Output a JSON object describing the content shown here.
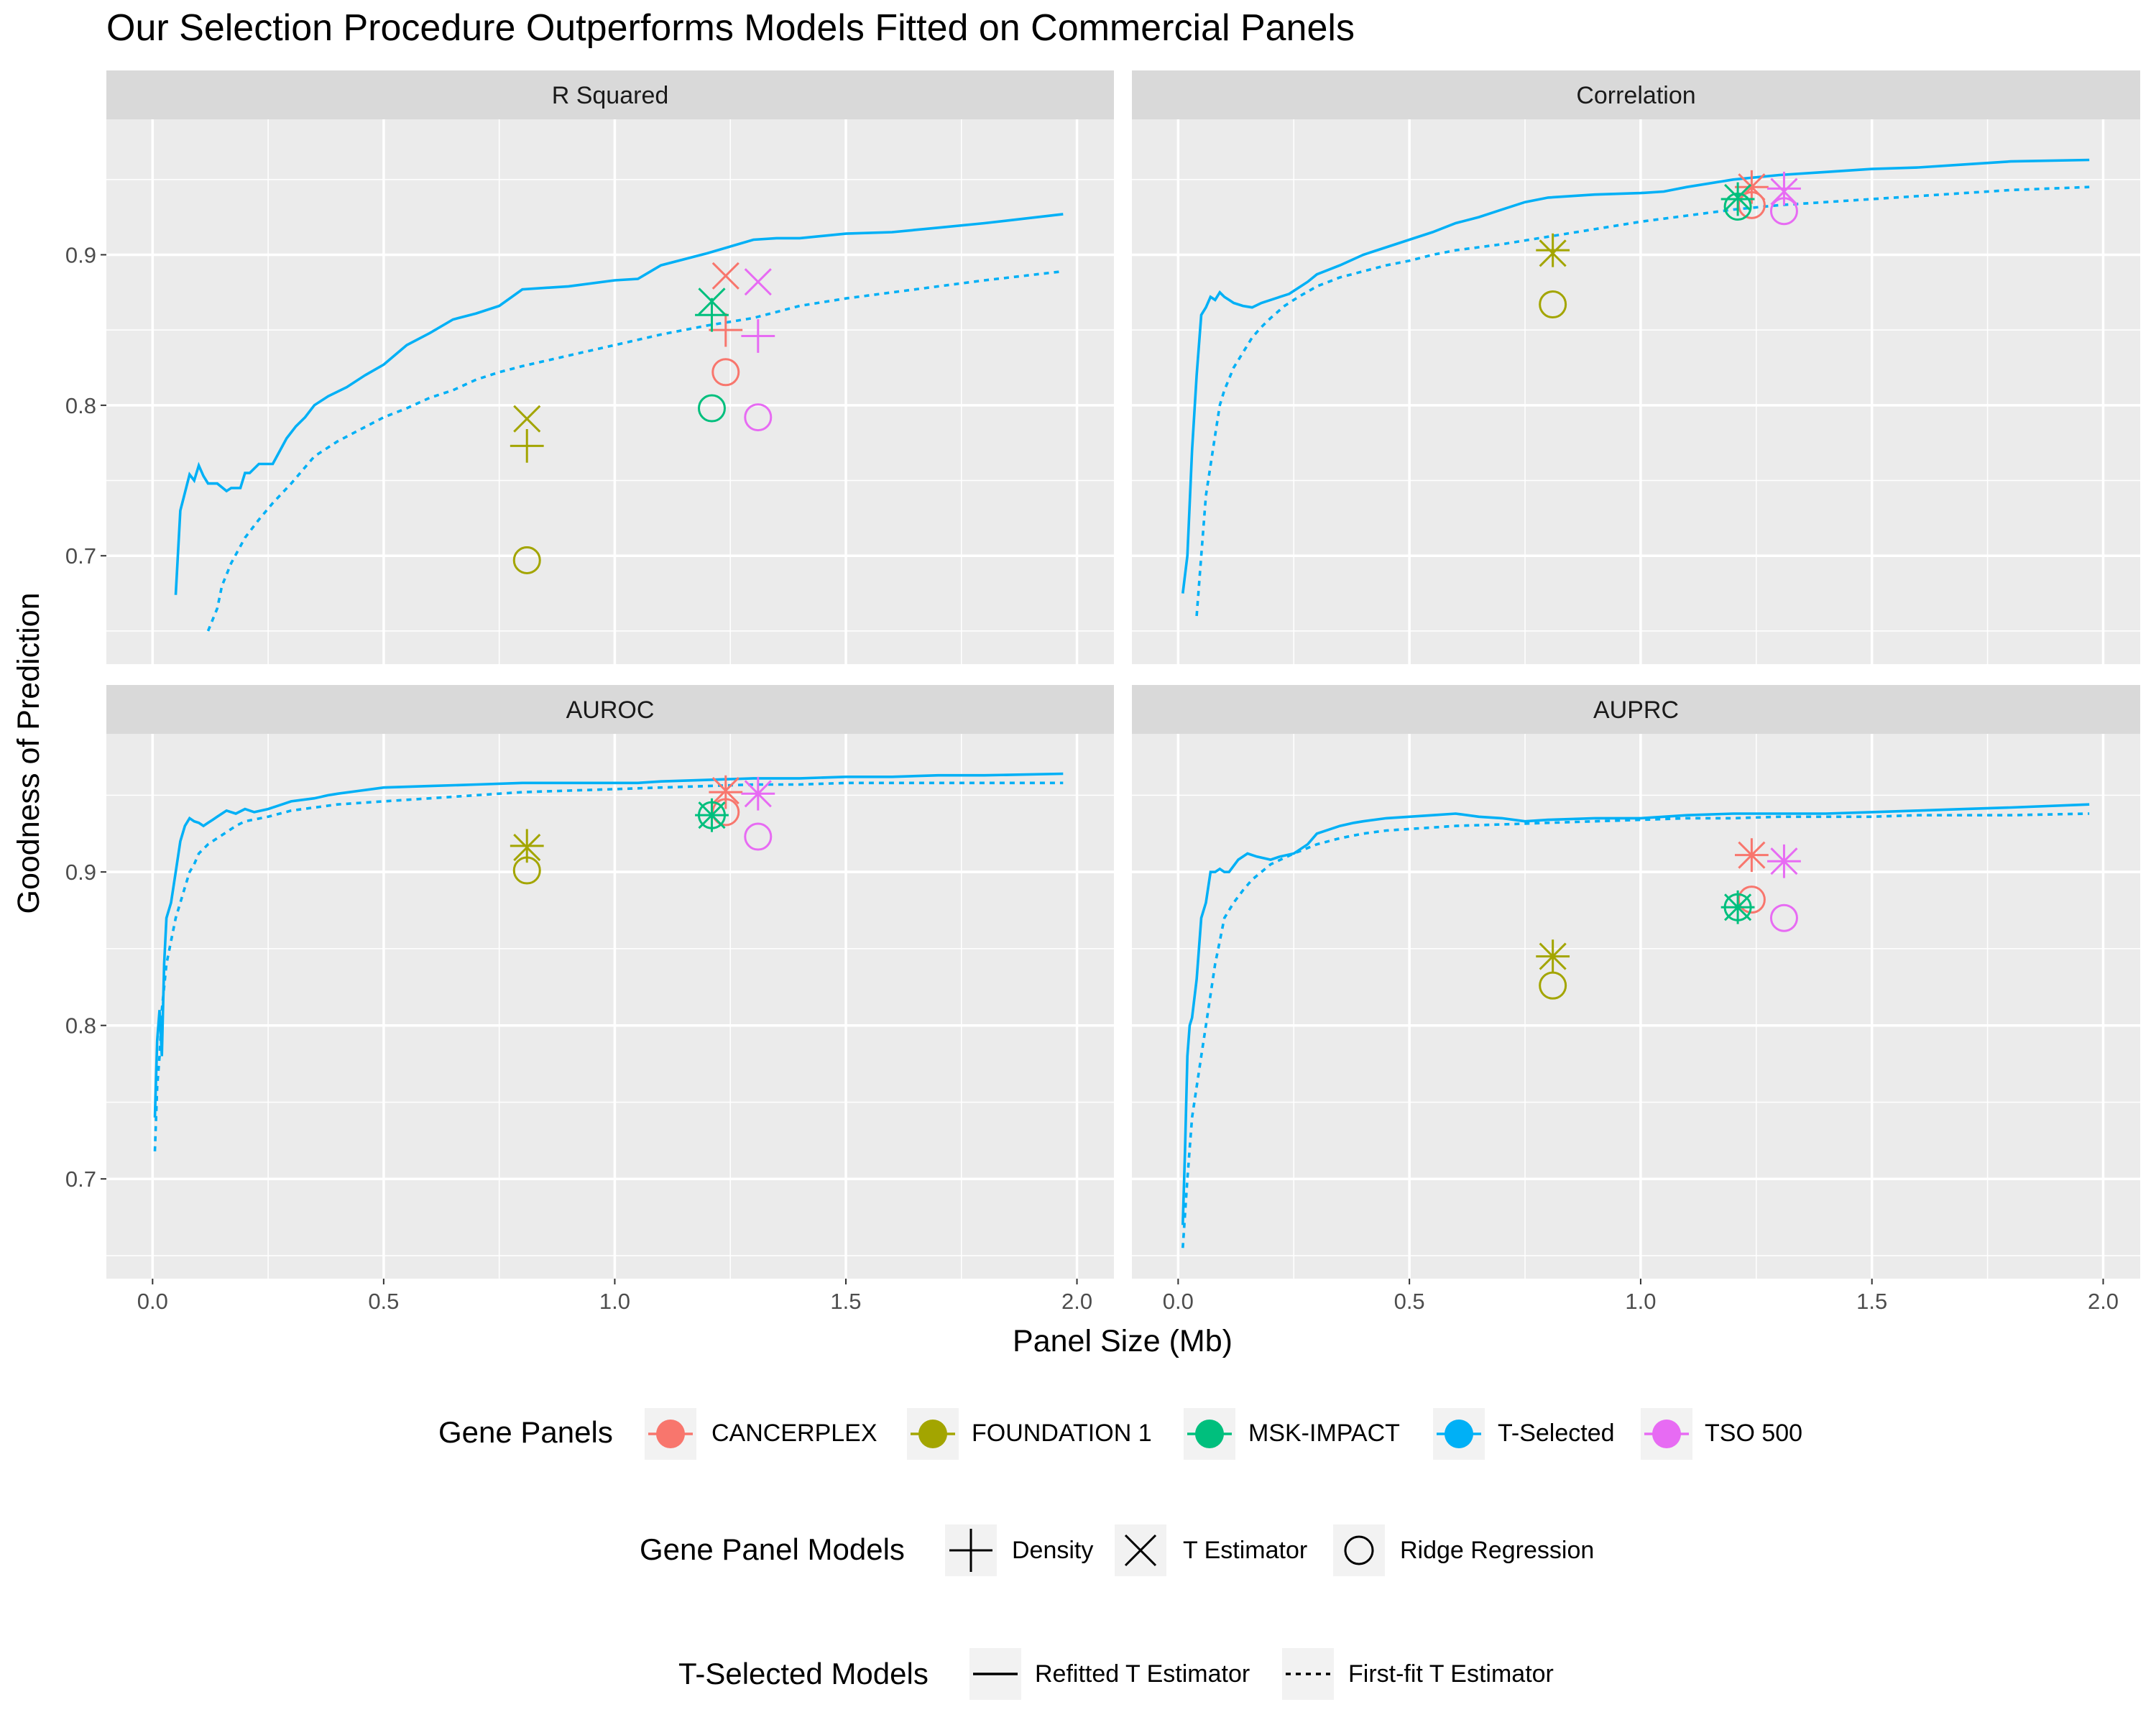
{
  "chart_data": {
    "type": "line",
    "title": "Our Selection Procedure Outperforms Models Fitted on Commercial Panels",
    "xlabel": "Panel Size (Mb)",
    "ylabel": "Goodness of Prediction",
    "facet_layout": "2x2",
    "facets": [
      "R Squared",
      "Correlation",
      "AUROC",
      "AUPRC"
    ],
    "xlim": [
      -0.1,
      2.08
    ],
    "x_ticks": [
      0.0,
      0.5,
      1.0,
      1.5,
      2.0
    ],
    "x_tick_labels": [
      "0.0",
      "0.5",
      "1.0",
      "1.5",
      "2.0"
    ],
    "rows": [
      {
        "ylim": [
          0.628,
          0.99
        ],
        "y_ticks": [
          0.7,
          0.8,
          0.9
        ],
        "y_tick_labels": [
          "0.7",
          "0.8",
          "0.9"
        ]
      },
      {
        "ylim": [
          0.635,
          0.99
        ],
        "y_ticks": [
          0.7,
          0.8,
          0.9
        ],
        "y_tick_labels": [
          "0.7",
          "0.8",
          "0.9"
        ]
      }
    ],
    "colors": {
      "CANCERPLEX": "#F8766D",
      "FOUNDATION 1": "#A3A500",
      "MSK-IMPACT": "#00BF7D",
      "T-Selected": "#00B0F6",
      "TSO 500": "#E76BF3"
    },
    "lines": {
      "R Squared": {
        "refitted": {
          "x": [
            0.05,
            0.06,
            0.08,
            0.09,
            0.1,
            0.11,
            0.12,
            0.14,
            0.16,
            0.17,
            0.19,
            0.2,
            0.21,
            0.23,
            0.26,
            0.29,
            0.31,
            0.33,
            0.35,
            0.38,
            0.42,
            0.46,
            0.5,
            0.55,
            0.6,
            0.65,
            0.7,
            0.75,
            0.8,
            0.9,
            1.0,
            1.05,
            1.1,
            1.2,
            1.3,
            1.35,
            1.4,
            1.5,
            1.6,
            1.7,
            1.8,
            1.97
          ],
          "y": [
            0.674,
            0.73,
            0.754,
            0.75,
            0.76,
            0.753,
            0.748,
            0.748,
            0.743,
            0.745,
            0.745,
            0.755,
            0.755,
            0.761,
            0.761,
            0.778,
            0.786,
            0.792,
            0.8,
            0.806,
            0.812,
            0.82,
            0.827,
            0.84,
            0.848,
            0.857,
            0.861,
            0.866,
            0.877,
            0.879,
            0.883,
            0.884,
            0.893,
            0.901,
            0.91,
            0.911,
            0.911,
            0.914,
            0.915,
            0.918,
            0.921,
            0.927
          ]
        },
        "firstfit": {
          "x": [
            0.12,
            0.14,
            0.15,
            0.17,
            0.2,
            0.23,
            0.26,
            0.3,
            0.35,
            0.4,
            0.45,
            0.5,
            0.55,
            0.6,
            0.65,
            0.7,
            0.75,
            0.8,
            0.9,
            1.0,
            1.1,
            1.2,
            1.3,
            1.4,
            1.5,
            1.6,
            1.7,
            1.8,
            1.97
          ],
          "y": [
            0.65,
            0.665,
            0.68,
            0.695,
            0.712,
            0.724,
            0.735,
            0.748,
            0.766,
            0.776,
            0.784,
            0.792,
            0.798,
            0.805,
            0.81,
            0.817,
            0.822,
            0.826,
            0.833,
            0.84,
            0.847,
            0.853,
            0.858,
            0.866,
            0.871,
            0.875,
            0.879,
            0.883,
            0.889
          ]
        }
      },
      "Correlation": {
        "refitted": {
          "x": [
            0.01,
            0.02,
            0.03,
            0.04,
            0.05,
            0.06,
            0.07,
            0.08,
            0.09,
            0.1,
            0.11,
            0.12,
            0.14,
            0.16,
            0.18,
            0.2,
            0.22,
            0.24,
            0.26,
            0.28,
            0.3,
            0.35,
            0.4,
            0.45,
            0.5,
            0.55,
            0.6,
            0.65,
            0.7,
            0.75,
            0.8,
            0.9,
            1.0,
            1.05,
            1.1,
            1.2,
            1.3,
            1.4,
            1.5,
            1.6,
            1.7,
            1.8,
            1.97
          ],
          "y": [
            0.675,
            0.7,
            0.77,
            0.82,
            0.86,
            0.865,
            0.872,
            0.87,
            0.875,
            0.872,
            0.87,
            0.868,
            0.866,
            0.865,
            0.868,
            0.87,
            0.872,
            0.874,
            0.878,
            0.882,
            0.887,
            0.893,
            0.9,
            0.905,
            0.91,
            0.915,
            0.921,
            0.925,
            0.93,
            0.935,
            0.938,
            0.94,
            0.941,
            0.942,
            0.945,
            0.95,
            0.953,
            0.955,
            0.957,
            0.958,
            0.96,
            0.962,
            0.963
          ]
        },
        "firstfit": {
          "x": [
            0.04,
            0.05,
            0.06,
            0.07,
            0.08,
            0.09,
            0.1,
            0.12,
            0.14,
            0.16,
            0.18,
            0.2,
            0.23,
            0.26,
            0.3,
            0.35,
            0.4,
            0.45,
            0.5,
            0.55,
            0.6,
            0.7,
            0.8,
            0.9,
            1.0,
            1.1,
            1.2,
            1.3,
            1.4,
            1.5,
            1.6,
            1.7,
            1.8,
            1.97
          ],
          "y": [
            0.66,
            0.7,
            0.74,
            0.76,
            0.78,
            0.8,
            0.81,
            0.825,
            0.835,
            0.845,
            0.852,
            0.858,
            0.866,
            0.872,
            0.879,
            0.885,
            0.889,
            0.893,
            0.896,
            0.9,
            0.903,
            0.907,
            0.912,
            0.917,
            0.922,
            0.926,
            0.93,
            0.933,
            0.935,
            0.937,
            0.939,
            0.941,
            0.943,
            0.945
          ]
        }
      },
      "AUROC": {
        "refitted": {
          "x": [
            0.005,
            0.01,
            0.015,
            0.02,
            0.025,
            0.03,
            0.04,
            0.05,
            0.06,
            0.07,
            0.08,
            0.09,
            0.1,
            0.11,
            0.12,
            0.13,
            0.14,
            0.15,
            0.16,
            0.18,
            0.2,
            0.22,
            0.25,
            0.28,
            0.3,
            0.35,
            0.38,
            0.4,
            0.45,
            0.5,
            0.6,
            0.7,
            0.8,
            0.9,
            1.0,
            1.05,
            1.1,
            1.2,
            1.3,
            1.4,
            1.5,
            1.6,
            1.7,
            1.8,
            1.97
          ],
          "y": [
            0.74,
            0.79,
            0.81,
            0.78,
            0.84,
            0.87,
            0.88,
            0.9,
            0.92,
            0.93,
            0.935,
            0.933,
            0.932,
            0.93,
            0.932,
            0.934,
            0.936,
            0.938,
            0.94,
            0.938,
            0.941,
            0.939,
            0.941,
            0.944,
            0.946,
            0.948,
            0.95,
            0.951,
            0.953,
            0.955,
            0.956,
            0.957,
            0.958,
            0.958,
            0.958,
            0.958,
            0.959,
            0.96,
            0.961,
            0.961,
            0.962,
            0.962,
            0.963,
            0.963,
            0.964
          ]
        },
        "firstfit": {
          "x": [
            0.005,
            0.01,
            0.015,
            0.02,
            0.03,
            0.04,
            0.05,
            0.06,
            0.07,
            0.08,
            0.09,
            0.1,
            0.12,
            0.14,
            0.16,
            0.18,
            0.2,
            0.25,
            0.3,
            0.35,
            0.4,
            0.5,
            0.6,
            0.7,
            0.8,
            0.9,
            1.0,
            1.1,
            1.2,
            1.3,
            1.4,
            1.5,
            1.6,
            1.7,
            1.8,
            1.97
          ],
          "y": [
            0.718,
            0.76,
            0.78,
            0.81,
            0.84,
            0.855,
            0.87,
            0.88,
            0.89,
            0.9,
            0.905,
            0.912,
            0.918,
            0.922,
            0.926,
            0.93,
            0.933,
            0.936,
            0.94,
            0.942,
            0.944,
            0.946,
            0.948,
            0.95,
            0.952,
            0.953,
            0.954,
            0.955,
            0.956,
            0.957,
            0.957,
            0.958,
            0.958,
            0.958,
            0.958,
            0.958
          ]
        }
      },
      "AUPRC": {
        "refitted": {
          "x": [
            0.01,
            0.015,
            0.02,
            0.025,
            0.03,
            0.04,
            0.05,
            0.06,
            0.07,
            0.08,
            0.09,
            0.1,
            0.11,
            0.13,
            0.15,
            0.17,
            0.2,
            0.22,
            0.25,
            0.28,
            0.3,
            0.35,
            0.38,
            0.4,
            0.45,
            0.5,
            0.55,
            0.6,
            0.65,
            0.7,
            0.75,
            0.8,
            0.9,
            1.0,
            1.05,
            1.1,
            1.2,
            1.3,
            1.4,
            1.5,
            1.6,
            1.7,
            1.8,
            1.97
          ],
          "y": [
            0.67,
            0.72,
            0.78,
            0.8,
            0.805,
            0.83,
            0.87,
            0.88,
            0.9,
            0.9,
            0.902,
            0.9,
            0.9,
            0.908,
            0.912,
            0.91,
            0.908,
            0.91,
            0.912,
            0.918,
            0.925,
            0.93,
            0.932,
            0.933,
            0.935,
            0.936,
            0.937,
            0.938,
            0.936,
            0.935,
            0.933,
            0.934,
            0.935,
            0.935,
            0.936,
            0.937,
            0.938,
            0.938,
            0.938,
            0.939,
            0.94,
            0.941,
            0.942,
            0.944
          ]
        },
        "firstfit": {
          "x": [
            0.01,
            0.02,
            0.03,
            0.04,
            0.05,
            0.06,
            0.07,
            0.08,
            0.09,
            0.1,
            0.12,
            0.14,
            0.16,
            0.18,
            0.2,
            0.25,
            0.3,
            0.35,
            0.4,
            0.45,
            0.5,
            0.6,
            0.7,
            0.8,
            0.9,
            1.0,
            1.1,
            1.2,
            1.3,
            1.4,
            1.5,
            1.6,
            1.7,
            1.8,
            1.97
          ],
          "y": [
            0.655,
            0.7,
            0.74,
            0.76,
            0.78,
            0.8,
            0.82,
            0.84,
            0.855,
            0.87,
            0.88,
            0.888,
            0.895,
            0.9,
            0.905,
            0.912,
            0.918,
            0.922,
            0.925,
            0.927,
            0.928,
            0.93,
            0.931,
            0.932,
            0.933,
            0.934,
            0.935,
            0.935,
            0.936,
            0.936,
            0.936,
            0.937,
            0.937,
            0.937,
            0.938
          ]
        }
      }
    },
    "points": {
      "R Squared": [
        {
          "panel": "CANCERPLEX",
          "x": 1.24,
          "density": 0.85,
          "estimator": 0.886,
          "ridge": 0.822
        },
        {
          "panel": "FOUNDATION 1",
          "x": 0.81,
          "density": 0.773,
          "estimator": 0.791,
          "ridge": 0.697
        },
        {
          "panel": "MSK-IMPACT",
          "x": 1.21,
          "density": 0.86,
          "estimator": 0.869,
          "ridge": 0.798
        },
        {
          "panel": "TSO 500",
          "x": 1.31,
          "density": 0.846,
          "estimator": 0.882,
          "ridge": 0.792
        }
      ],
      "Correlation": [
        {
          "panel": "CANCERPLEX",
          "x": 1.24,
          "density": 0.945,
          "estimator": 0.945,
          "ridge": 0.933
        },
        {
          "panel": "FOUNDATION 1",
          "x": 0.81,
          "density": 0.903,
          "estimator": 0.901,
          "ridge": 0.867
        },
        {
          "panel": "MSK-IMPACT",
          "x": 1.21,
          "density": 0.937,
          "estimator": 0.938,
          "ridge": 0.932
        },
        {
          "panel": "TSO 500",
          "x": 1.31,
          "density": 0.944,
          "estimator": 0.942,
          "ridge": 0.929
        }
      ],
      "AUROC": [
        {
          "panel": "CANCERPLEX",
          "x": 1.24,
          "density": 0.952,
          "estimator": 0.953,
          "ridge": 0.939
        },
        {
          "panel": "FOUNDATION 1",
          "x": 0.81,
          "density": 0.917,
          "estimator": 0.916,
          "ridge": 0.901
        },
        {
          "panel": "MSK-IMPACT",
          "x": 1.21,
          "density": 0.937,
          "estimator": 0.937,
          "ridge": 0.937
        },
        {
          "panel": "TSO 500",
          "x": 1.31,
          "density": 0.951,
          "estimator": 0.951,
          "ridge": 0.923
        }
      ],
      "AUPRC": [
        {
          "panel": "CANCERPLEX",
          "x": 1.24,
          "density": 0.911,
          "estimator": 0.911,
          "ridge": 0.882
        },
        {
          "panel": "FOUNDATION 1",
          "x": 0.81,
          "density": 0.845,
          "estimator": 0.845,
          "ridge": 0.826
        },
        {
          "panel": "MSK-IMPACT",
          "x": 1.21,
          "density": 0.877,
          "estimator": 0.877,
          "ridge": 0.877
        },
        {
          "panel": "TSO 500",
          "x": 1.31,
          "density": 0.907,
          "estimator": 0.907,
          "ridge": 0.87
        }
      ]
    },
    "legend_placement": "bottom",
    "legends": [
      {
        "title": "Gene Panels",
        "items": [
          "CANCERPLEX",
          "FOUNDATION 1",
          "MSK-IMPACT",
          "T-Selected",
          "TSO 500"
        ]
      },
      {
        "title": "Gene Panel Models",
        "items": [
          "Density",
          "T Estimator",
          "Ridge Regression"
        ]
      },
      {
        "title": "T-Selected Models",
        "items": [
          "Refitted T Estimator",
          "First-fit T Estimator"
        ]
      }
    ],
    "grid": true
  }
}
